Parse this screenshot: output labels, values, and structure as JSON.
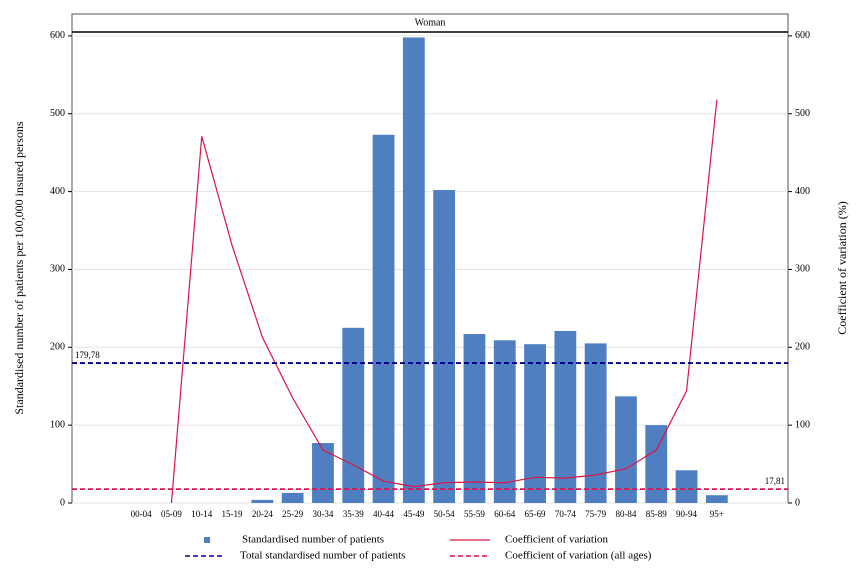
{
  "chart_data": {
    "type": "bar",
    "panel_title": "Woman",
    "y_label": "Standardised number of patients per 100,000 insured persons",
    "y2_label": "Coefficient of variation (%)",
    "categories": [
      "00-04",
      "05-09",
      "10-14",
      "15-19",
      "20-24",
      "25-29",
      "30-34",
      "35-39",
      "40-44",
      "45-49",
      "50-54",
      "55-59",
      "60-64",
      "65-69",
      "70-74",
      "75-79",
      "80-84",
      "85-89",
      "90-94",
      "95+"
    ],
    "series": [
      {
        "name": "Standardised number of patients",
        "type": "bar",
        "color": "#4f7fc1",
        "axis": "y",
        "values": [
          0,
          0,
          0,
          0,
          4,
          13,
          77,
          225,
          473,
          598,
          402,
          217,
          209,
          204,
          221,
          205,
          137,
          100,
          42,
          10
        ]
      },
      {
        "name": "Coefficient of variation",
        "type": "line",
        "color": "#dc1446",
        "axis": "y2",
        "values": [
          null,
          0,
          471,
          331,
          213,
          135,
          68,
          49,
          28,
          21,
          26,
          27,
          26,
          33,
          32,
          36,
          44,
          68,
          144,
          518
        ]
      }
    ],
    "reference_lines": [
      {
        "name": "Total standardised number of patients",
        "value": 179.78,
        "label": "179,78",
        "axis": "y",
        "color": "#00008b"
      },
      {
        "name": "Coefficient of variation (all ages)",
        "value": 17.81,
        "label": "17,81",
        "axis": "y2",
        "color": "#dc1450"
      }
    ],
    "ylim": [
      0,
      605
    ],
    "yticks": [
      0,
      100,
      200,
      300,
      400,
      500,
      600
    ],
    "y2lim": [
      0,
      605
    ],
    "y2ticks": [
      0,
      100,
      200,
      300,
      400,
      500,
      600
    ],
    "grid": true
  }
}
